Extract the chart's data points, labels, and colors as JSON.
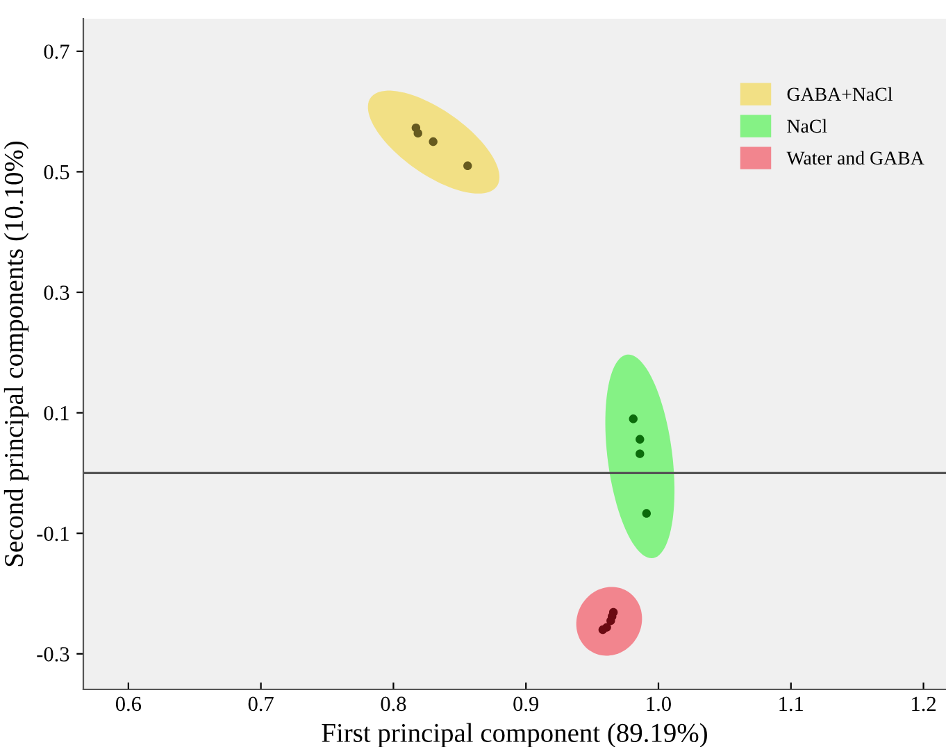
{
  "chart_data": {
    "type": "scatter",
    "xlabel": "First principal component (89.19%)",
    "ylabel": "Second principal components (10.10%)",
    "xlim": [
      0.566,
      1.217
    ],
    "xticks": [
      0.6,
      0.7,
      0.8,
      0.9,
      {
        "value": 1.0,
        "label": "1.0"
      },
      1.1,
      1.2
    ],
    "ylim": [
      -0.359,
      0.754
    ],
    "yticks": [
      -0.3,
      -0.1,
      0.1,
      0.3,
      0.5,
      0.7
    ],
    "grid": false,
    "legend": "top right",
    "marker": "circle",
    "ref_lines": [
      {
        "axis": "y",
        "value": 0,
        "color": "#555555"
      }
    ],
    "series": [
      {
        "name": "GABA+NaCl",
        "color": "#665a1f",
        "x": [
          0.817,
          0.8185,
          0.83,
          0.856
        ],
        "values": [
          0.573,
          0.564,
          0.55,
          0.51
        ]
      },
      {
        "name": "NaCl",
        "color": "#0b6b0b",
        "x": [
          0.981,
          0.986,
          0.986,
          0.991
        ],
        "values": [
          0.09,
          0.056,
          0.032,
          -0.067
        ]
      },
      {
        "name": "Water and GABA",
        "color": "#6b0a12",
        "x": [
          0.966,
          0.965,
          0.964,
          0.961,
          0.958
        ],
        "values": [
          -0.231,
          -0.238,
          -0.245,
          -0.256,
          -0.26
        ]
      }
    ]
  }
}
